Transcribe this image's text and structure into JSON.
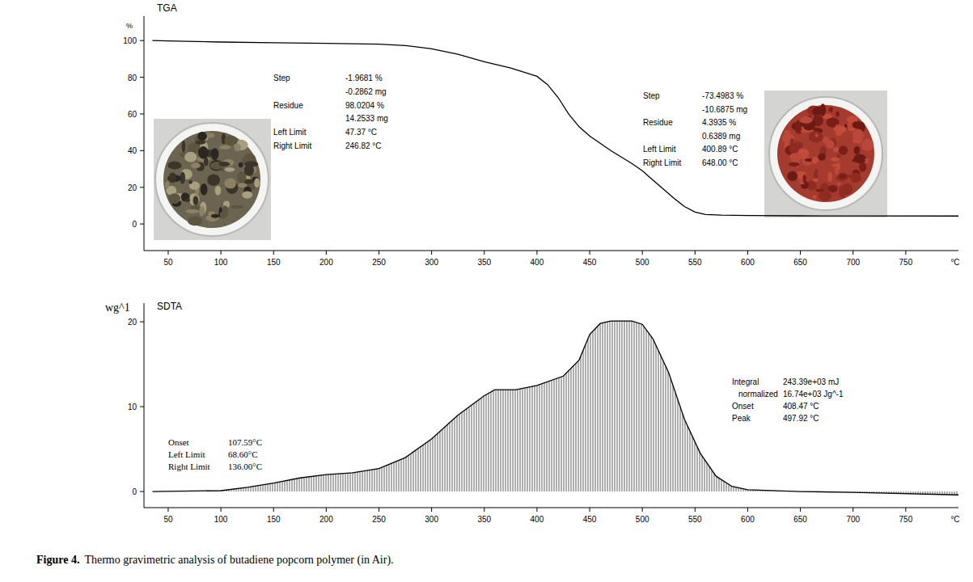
{
  "chart_data": [
    {
      "type": "line",
      "title": "TGA",
      "ylabel": "%",
      "xlabel": "°C",
      "x": [
        35,
        50,
        100,
        150,
        200,
        250,
        275,
        300,
        325,
        350,
        375,
        400,
        410,
        420,
        430,
        440,
        450,
        460,
        470,
        480,
        490,
        500,
        510,
        520,
        530,
        540,
        550,
        560,
        575,
        600,
        650,
        700,
        800
      ],
      "series": [
        {
          "color": "#000000",
          "values": [
            100,
            99.8,
            99.2,
            98.8,
            98.5,
            98.0,
            97.3,
            95.5,
            92.5,
            88.5,
            85,
            80.5,
            76,
            69,
            60,
            53,
            48,
            44,
            40,
            36.5,
            33,
            29,
            24,
            19,
            14,
            9.5,
            6.5,
            5.2,
            4.8,
            4.6,
            4.45,
            4.4,
            4.35
          ]
        }
      ],
      "xlim": [
        27,
        800
      ],
      "xticks": [
        50,
        100,
        150,
        200,
        250,
        300,
        350,
        400,
        450,
        500,
        550,
        600,
        650,
        700,
        750
      ],
      "ylim": [
        -14.5,
        113.3
      ],
      "yticks": [
        0,
        20,
        40,
        60,
        80,
        100
      ],
      "annotations": [
        {
          "rows": [
            [
              "Step",
              "-1.9681 %"
            ],
            [
              "-0.2862 mg"
            ],
            [
              "Residue",
              "98.0204 %"
            ],
            [
              "14.2533 mg"
            ],
            [
              "Left Limit",
              "47.37 °C"
            ],
            [
              "Right Limit",
              "246.82 °C"
            ]
          ]
        },
        {
          "rows": [
            [
              "Step",
              "-73.4983 %"
            ],
            [
              "-10.6875 mg"
            ],
            [
              "Residue",
              "4.3935 %"
            ],
            [
              "0.6389 mg"
            ],
            [
              "Left Limit",
              "400.89 °C"
            ],
            [
              "Right Limit",
              "648.00 °C"
            ]
          ]
        }
      ]
    },
    {
      "type": "area",
      "title": "SDTA",
      "ylabel": "wg^1",
      "xlabel": "°C",
      "x": [
        35,
        100,
        125,
        150,
        175,
        200,
        225,
        250,
        275,
        300,
        325,
        350,
        360,
        380,
        400,
        425,
        440,
        450,
        460,
        470,
        490,
        500,
        510,
        525,
        540,
        555,
        570,
        585,
        600,
        650,
        700,
        800
      ],
      "series": [
        {
          "color": "#000000",
          "values": [
            0,
            0.1,
            0.5,
            1.0,
            1.6,
            2.0,
            2.2,
            2.7,
            4.0,
            6.2,
            9.0,
            11.3,
            12.0,
            12.0,
            12.5,
            13.6,
            15.5,
            18.5,
            19.8,
            20.1,
            20.1,
            19.7,
            18.0,
            14.0,
            8.5,
            4.5,
            1.8,
            0.6,
            0.2,
            0,
            -0.1,
            -0.4
          ]
        }
      ],
      "xlim": [
        27,
        800
      ],
      "xticks": [
        50,
        100,
        150,
        200,
        250,
        300,
        350,
        400,
        450,
        500,
        550,
        600,
        650,
        700,
        750
      ],
      "ylim": [
        -1.9,
        22.2
      ],
      "yticks": [
        0,
        10,
        20
      ],
      "annotations": [
        {
          "rows": [
            [
              "Onset",
              "107.59°C"
            ],
            [
              "Left Limit",
              "68.60°C"
            ],
            [
              "Right Limit",
              "136.00°C"
            ]
          ]
        },
        {
          "rows": [
            [
              "Integral",
              "243.39e+03 mJ"
            ],
            [
              "normalized",
              "16.74e+03 Jg^-1"
            ],
            [
              "Onset",
              "408.47 °C"
            ],
            [
              "Peak",
              "497.92 °C"
            ]
          ]
        }
      ]
    }
  ],
  "caption": {
    "label": "Figure 4.",
    "text": "Thermo gravimetric analysis of butadiene popcorn polymer (in Air)."
  }
}
